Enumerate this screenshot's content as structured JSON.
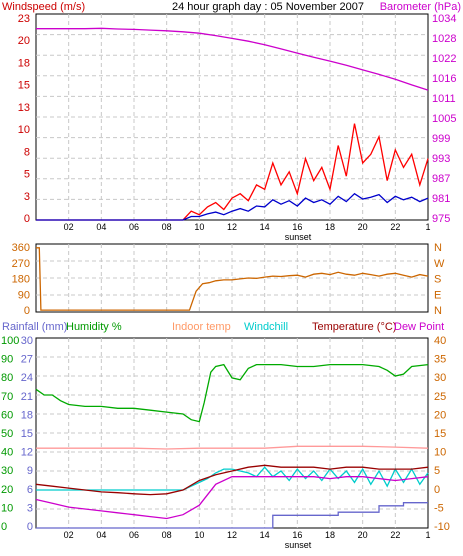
{
  "chart_data": [
    {
      "type": "line",
      "title": "24 hour graph day : 05 November 2007",
      "left_axis_label": "Windspeed (m/s)",
      "right_axis_label": "Barometer (hPa)",
      "left_ticks": [
        "23",
        "20",
        "18",
        "15",
        "13",
        "10",
        "8",
        "5",
        "3",
        "0"
      ],
      "right_ticks": [
        "1034",
        "1028",
        "1022",
        "1016",
        "1011",
        "1005",
        "999",
        "993",
        "987",
        "981",
        "975"
      ],
      "xlabels": [
        "02",
        "04",
        "06",
        "08",
        "10",
        "12",
        "14",
        "16",
        "18",
        "20",
        "22",
        "1"
      ],
      "sunset_label": "sunset",
      "x_range_hours": [
        0,
        24
      ],
      "ylim_wind": [
        0,
        23.5
      ],
      "ylim_baro": [
        975,
        1034
      ],
      "grid": true,
      "series": [
        {
          "name": "Barometer",
          "color": "#cc00cc",
          "x": [
            0,
            1,
            2,
            3,
            4,
            5,
            6,
            7,
            8,
            9,
            10,
            11,
            12,
            13,
            14,
            15,
            16,
            17,
            18,
            19,
            20,
            21,
            22,
            23,
            24
          ],
          "y": [
            1029.8,
            1029.8,
            1029.8,
            1029.8,
            1029.9,
            1029.7,
            1029.6,
            1029.4,
            1029.2,
            1028.9,
            1028.5,
            1027.8,
            1027.0,
            1026.2,
            1025.2,
            1024.0,
            1022.8,
            1021.6,
            1020.5,
            1019.3,
            1018.0,
            1016.7,
            1015.3,
            1013.7,
            1012.2
          ]
        },
        {
          "name": "Windspeed gust",
          "color": "#ff0000",
          "x": [
            0,
            9,
            9.5,
            10,
            10.5,
            11,
            11.5,
            12,
            12.5,
            13,
            13.5,
            14,
            14.5,
            15,
            15.5,
            16,
            16.5,
            17,
            17.5,
            18,
            18.5,
            19,
            19.5,
            20,
            20.5,
            21,
            21.5,
            22,
            22.5,
            23,
            23.5,
            24
          ],
          "y": [
            0,
            0,
            1.0,
            0.6,
            1.5,
            2.0,
            1.2,
            2.5,
            3.0,
            2.2,
            4.0,
            3.5,
            6.5,
            4.0,
            5.5,
            3.0,
            7.0,
            4.5,
            6.0,
            3.5,
            8.5,
            5.0,
            11.0,
            6.5,
            7.5,
            9.5,
            4.5,
            8.0,
            6.0,
            7.5,
            4.0,
            7.0
          ]
        },
        {
          "name": "Windspeed average",
          "color": "#0000cc",
          "x": [
            0,
            9,
            9.5,
            10,
            10.5,
            11,
            11.5,
            12,
            12.5,
            13,
            13.5,
            14,
            14.5,
            15,
            15.5,
            16,
            16.5,
            17,
            17.5,
            18,
            18.5,
            19,
            19.5,
            20,
            20.5,
            21,
            21.5,
            22,
            22.5,
            23,
            23.5,
            24
          ],
          "y": [
            0,
            0,
            0.4,
            0.4,
            0.7,
            0.9,
            0.6,
            1.0,
            1.3,
            1.0,
            1.6,
            1.5,
            2.3,
            1.8,
            2.2,
            1.6,
            2.5,
            2.0,
            2.3,
            1.8,
            2.7,
            2.1,
            3.0,
            2.4,
            2.6,
            2.9,
            2.0,
            2.7,
            2.3,
            2.6,
            2.1,
            2.5
          ]
        }
      ]
    },
    {
      "type": "line",
      "left_ticks": [
        "360",
        "270",
        "180",
        "90",
        "0"
      ],
      "right_ticks": [
        "N",
        "W",
        "S",
        "E",
        "N"
      ],
      "x_range_hours": [
        0,
        24
      ],
      "ylim": [
        0,
        360
      ],
      "grid": true,
      "series": [
        {
          "name": "Wind direction",
          "color": "#cc6600",
          "x": [
            0,
            0.2,
            0.3,
            1,
            2,
            3,
            4,
            5,
            6,
            7,
            8,
            9,
            9.4,
            9.8,
            10.2,
            10.6,
            11,
            11.5,
            12,
            12.5,
            13,
            13.5,
            14,
            14.5,
            15,
            15.5,
            16,
            16.5,
            17,
            17.5,
            18,
            18.5,
            19,
            19.5,
            20,
            20.5,
            21,
            21.5,
            22,
            22.5,
            23,
            23.5,
            24
          ],
          "y": [
            340,
            340,
            10,
            10,
            10,
            10,
            10,
            10,
            10,
            10,
            10,
            10,
            10,
            110,
            150,
            155,
            165,
            170,
            170,
            175,
            180,
            178,
            185,
            190,
            188,
            192,
            195,
            185,
            200,
            205,
            198,
            210,
            200,
            195,
            205,
            198,
            190,
            200,
            205,
            195,
            185,
            198,
            190
          ]
        }
      ]
    },
    {
      "type": "line",
      "left_labels": [
        {
          "text": "Rainfall (mm)",
          "color": "#6666cc"
        },
        {
          "text": "Humidity %",
          "color": "#009900"
        }
      ],
      "middle_labels": [
        {
          "text": "Indoor temp",
          "color": "#ff9966"
        },
        {
          "text": "Windchill",
          "color": "#00cccc"
        }
      ],
      "right_labels": [
        {
          "text": "Temperature (°C)",
          "color": "#990000"
        },
        {
          "text": "Dew Point",
          "color": "#cc00cc"
        }
      ],
      "humidity_ticks": [
        "100",
        "90",
        "80",
        "70",
        "60",
        "50",
        "40",
        "30",
        "20",
        "10",
        "0"
      ],
      "rain_ticks": [
        "30",
        "27",
        "24",
        "21",
        "18",
        "15",
        "12",
        "9",
        "6",
        "3",
        "0"
      ],
      "temp_ticks": [
        "40",
        "35",
        "30",
        "25",
        "20",
        "15",
        "10",
        "5",
        "0",
        "-5",
        "-10"
      ],
      "xlabels": [
        "02",
        "04",
        "06",
        "08",
        "10",
        "12",
        "14",
        "16",
        "18",
        "20",
        "22",
        "1"
      ],
      "sunset_label": "sunset",
      "x_range_hours": [
        0,
        24
      ],
      "ylim_humidity": [
        0,
        100
      ],
      "ylim_rain": [
        0,
        30
      ],
      "ylim_temp": [
        -10,
        40
      ],
      "grid": true,
      "series": [
        {
          "name": "Humidity",
          "color": "#00aa00",
          "axis": "humidity",
          "x": [
            0,
            0.5,
            1,
            1.5,
            2,
            3,
            4,
            5,
            6,
            7,
            8,
            9,
            9.5,
            10,
            10.3,
            10.7,
            11,
            11.5,
            12,
            12.5,
            13,
            13.5,
            14,
            15,
            16,
            17,
            18,
            19,
            20,
            21,
            21.5,
            22,
            22.5,
            23,
            24
          ],
          "y": [
            73,
            70,
            70,
            67,
            65,
            64,
            64,
            63,
            63,
            62,
            61,
            60,
            57,
            56,
            66,
            82,
            85,
            86,
            79,
            78,
            84,
            86,
            86,
            86,
            85,
            85,
            86,
            86,
            86,
            85,
            83,
            80,
            81,
            85,
            86
          ]
        },
        {
          "name": "Indoor temp",
          "color": "#ff9999",
          "axis": "temp",
          "x": [
            0,
            2,
            4,
            6,
            8,
            10,
            12,
            14,
            16,
            18,
            20,
            22,
            24
          ],
          "y": [
            11,
            11,
            11,
            11,
            10.8,
            11,
            11,
            11,
            11.5,
            11.5,
            11.5,
            11.3,
            11
          ]
        },
        {
          "name": "Windchill",
          "color": "#00cccc",
          "axis": "temp",
          "x": [
            0,
            9,
            10,
            10.5,
            11,
            11.5,
            12,
            12.5,
            13,
            13.5,
            14,
            14.5,
            15,
            15.5,
            16,
            16.5,
            17,
            17.5,
            18,
            18.5,
            19,
            19.5,
            20,
            20.5,
            21,
            21.5,
            22,
            22.5,
            23,
            23.5,
            24
          ],
          "y": [
            0,
            0,
            2,
            3,
            4.5,
            5.5,
            5.5,
            5.0,
            4.5,
            3.5,
            6.0,
            3.5,
            5.0,
            2.5,
            5.5,
            3.0,
            5.0,
            2.5,
            5.5,
            3.0,
            5.0,
            2.0,
            5.5,
            1.5,
            5.0,
            1.0,
            5.5,
            2.0,
            5.5,
            1.5,
            4.5
          ]
        },
        {
          "name": "Temperature",
          "color": "#990000",
          "axis": "temp",
          "x": [
            0,
            1,
            2,
            3,
            4,
            5,
            6,
            7,
            8,
            9,
            10,
            11,
            12,
            13,
            14,
            15,
            16,
            17,
            18,
            19,
            20,
            21,
            22,
            23,
            24
          ],
          "y": [
            1.5,
            1.0,
            0.5,
            0.0,
            -0.5,
            -0.7,
            -1.0,
            -1.2,
            -1.0,
            0.0,
            2.5,
            4.0,
            5.0,
            6.0,
            6.5,
            6.0,
            6.0,
            6.0,
            5.5,
            6.0,
            6.0,
            5.5,
            5.5,
            5.5,
            6.0
          ]
        },
        {
          "name": "Dew Point",
          "color": "#cc00cc",
          "axis": "temp",
          "x": [
            0,
            1,
            2,
            3,
            4,
            5,
            6,
            7,
            8,
            9,
            10,
            11,
            12,
            13,
            14,
            15,
            16,
            17,
            18,
            19,
            20,
            21,
            22,
            23,
            24
          ],
          "y": [
            -2.5,
            -3.5,
            -4.5,
            -5.0,
            -5.5,
            -6.0,
            -6.5,
            -7.0,
            -7.5,
            -6.5,
            -4.0,
            1.5,
            3.5,
            3.5,
            3.5,
            3.5,
            3.5,
            3.5,
            3.0,
            3.5,
            3.5,
            3.0,
            2.5,
            3.0,
            3.5
          ]
        },
        {
          "name": "Rainfall",
          "color": "#6666cc",
          "axis": "rain",
          "x": [
            0,
            14.5,
            14.5,
            18.5,
            18.5,
            21,
            21,
            22.5,
            22.5,
            24
          ],
          "y": [
            0,
            0,
            2,
            2,
            2.5,
            2.5,
            3.5,
            3.5,
            4,
            4
          ]
        }
      ]
    }
  ]
}
